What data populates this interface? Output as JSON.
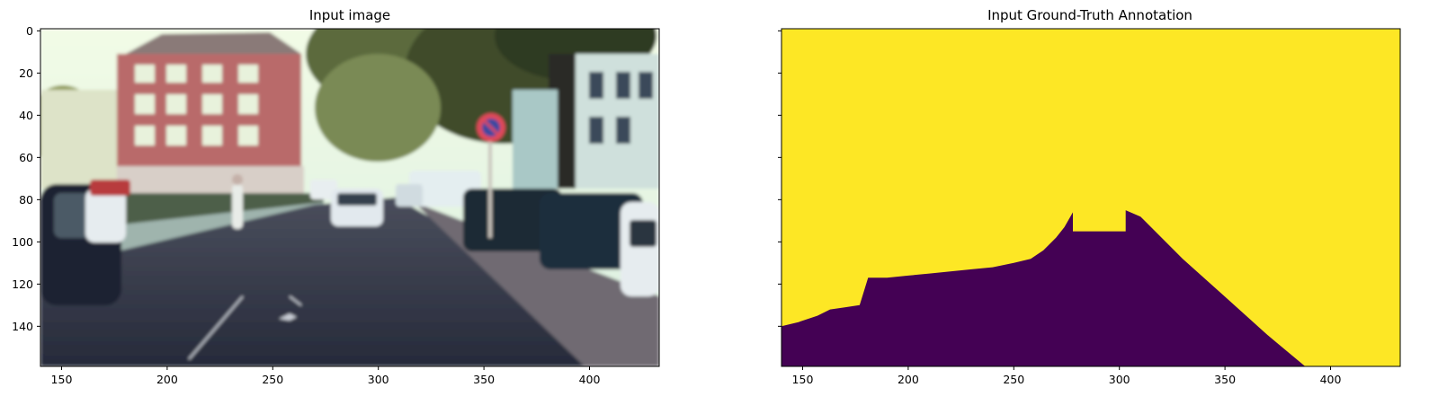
{
  "chart_data": [
    {
      "type": "image",
      "title": "Input image",
      "xlim": [
        140,
        433
      ],
      "ylim": [
        159,
        -1
      ],
      "x_ticks": [
        150,
        200,
        250,
        300,
        350,
        400
      ],
      "y_ticks": [
        0,
        20,
        40,
        60,
        80,
        100,
        120,
        140
      ],
      "content": "photo of a city street with parked cars and a no-parking sign"
    },
    {
      "type": "heatmap",
      "title": "Input Ground-Truth Annotation",
      "xlim": [
        140,
        433
      ],
      "ylim": [
        159,
        -1
      ],
      "x_ticks": [
        150,
        200,
        250,
        300,
        350,
        400
      ],
      "y_ticks": [
        0,
        20,
        40,
        60,
        80,
        100,
        120,
        140
      ],
      "y_tick_labels_shown": false,
      "colors": {
        "background": "#fde725",
        "road": "#440154"
      },
      "road_boundary": [
        [
          140,
          140
        ],
        [
          148,
          138
        ],
        [
          157,
          135
        ],
        [
          163,
          132
        ],
        [
          170,
          131
        ],
        [
          177,
          130
        ],
        [
          181,
          117
        ],
        [
          190,
          117
        ],
        [
          200,
          116
        ],
        [
          210,
          115
        ],
        [
          220,
          114
        ],
        [
          230,
          113
        ],
        [
          240,
          112
        ],
        [
          250,
          110
        ],
        [
          258,
          108
        ],
        [
          264,
          104
        ],
        [
          270,
          98
        ],
        [
          274,
          93
        ],
        [
          278,
          86
        ],
        [
          278,
          95
        ],
        [
          303,
          95
        ],
        [
          303,
          85
        ],
        [
          310,
          88
        ],
        [
          330,
          108
        ],
        [
          350,
          126
        ],
        [
          370,
          144
        ],
        [
          388,
          159
        ]
      ]
    }
  ]
}
